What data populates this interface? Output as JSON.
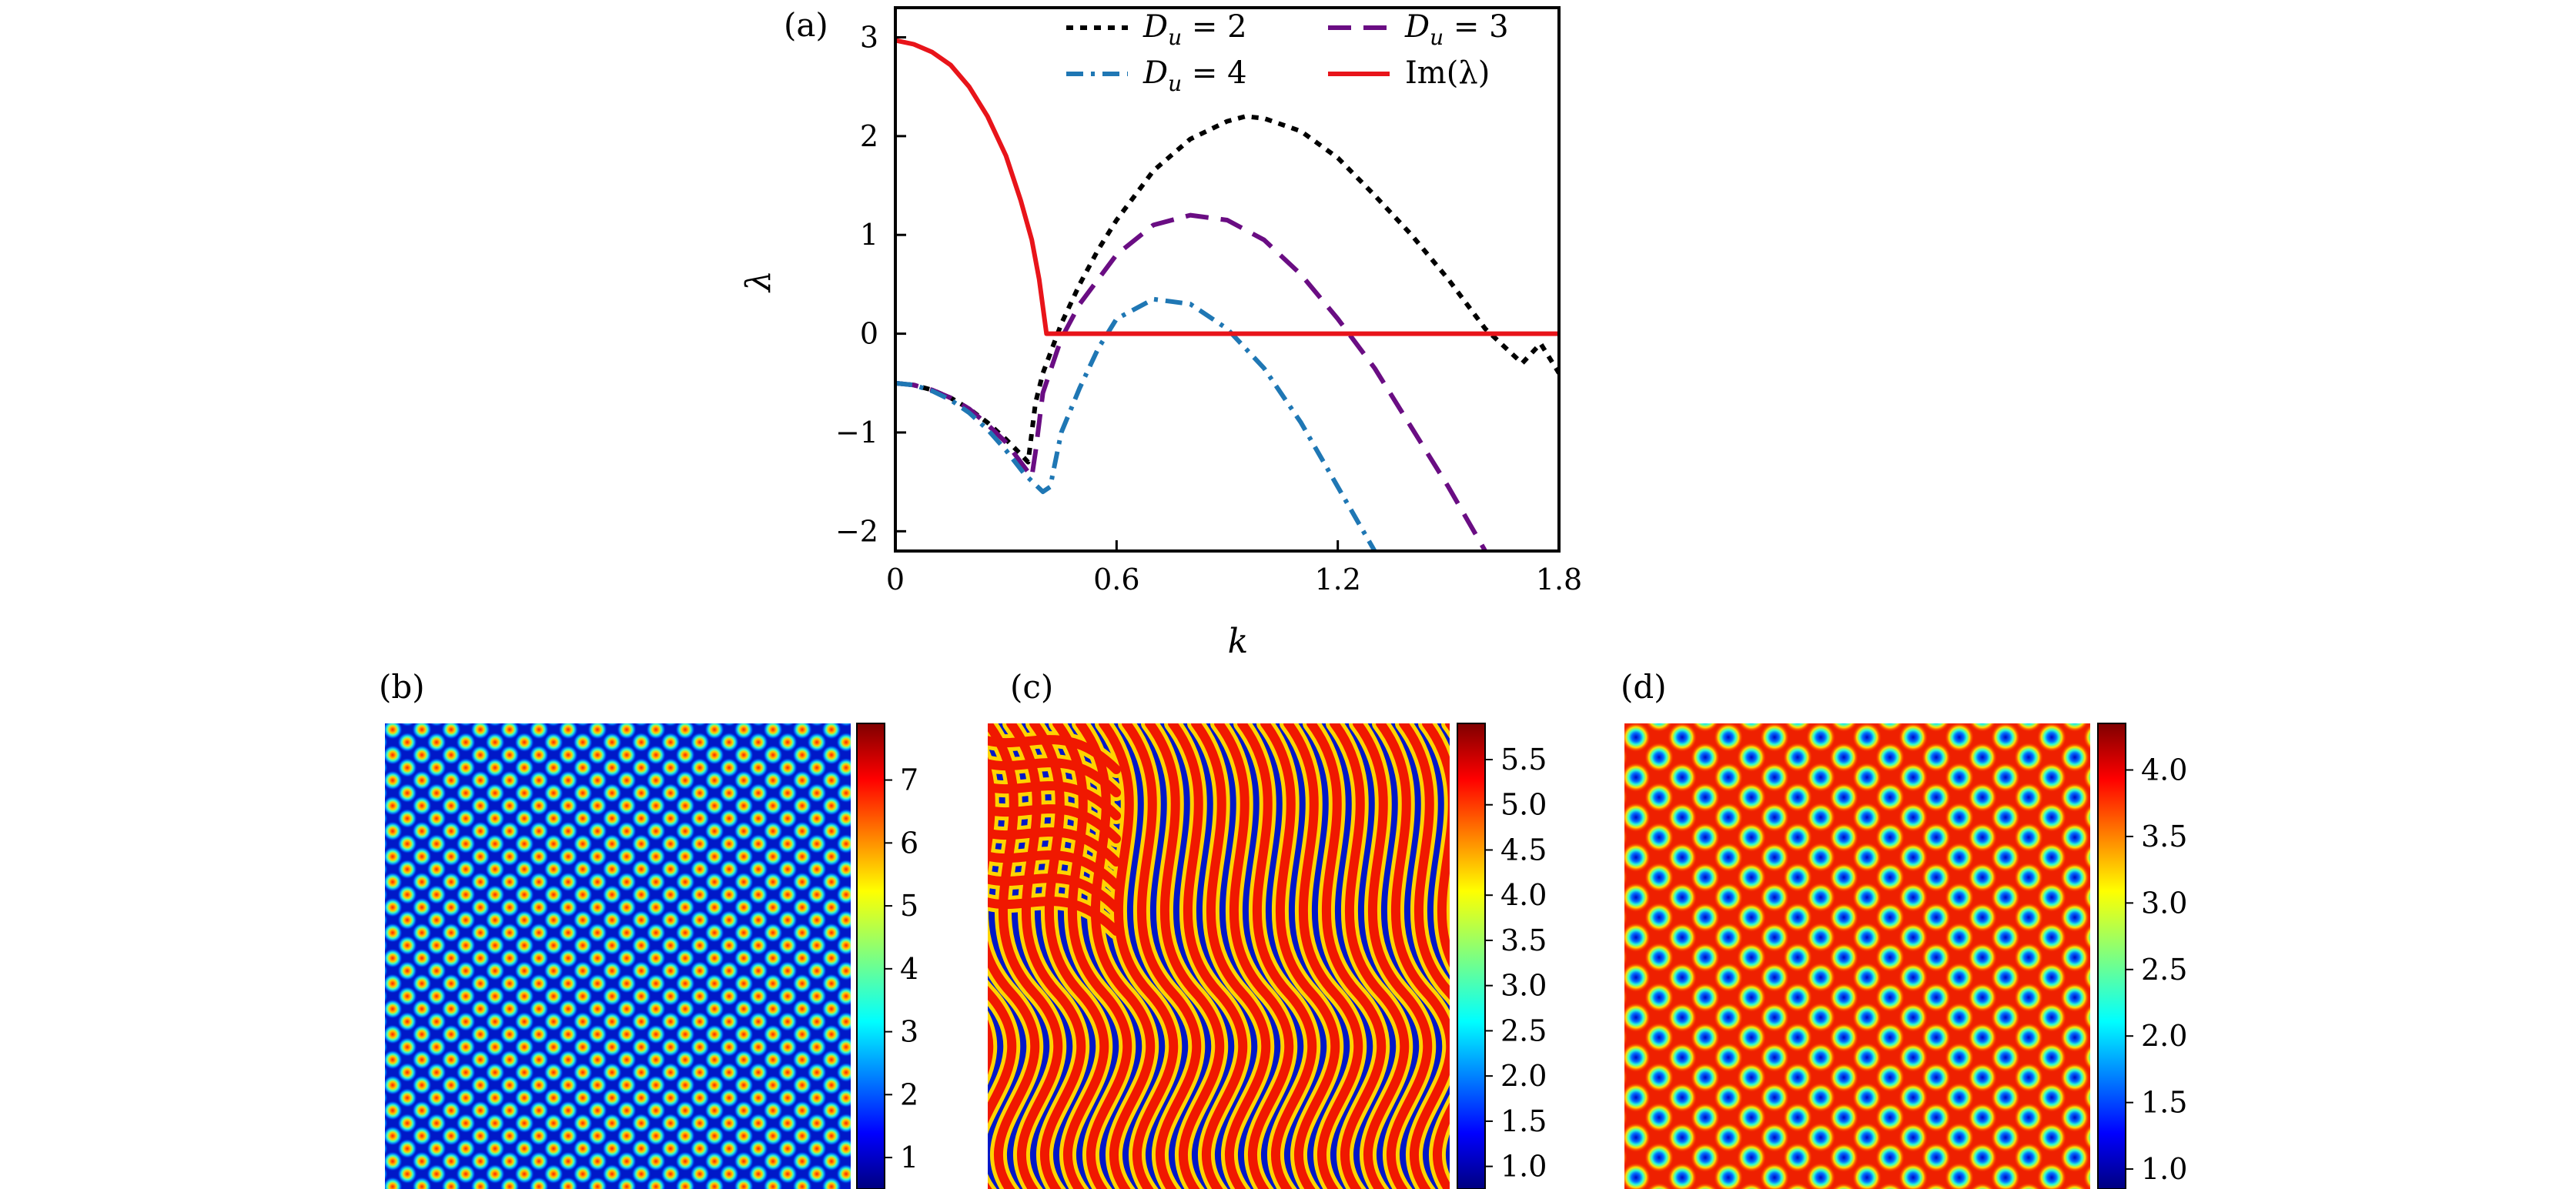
{
  "chart_data": [
    {
      "type": "line",
      "panel": "(a)",
      "xlabel": "k",
      "ylabel": "λ",
      "xlim": [
        0,
        1.8
      ],
      "ylim": [
        -2.2,
        3.3
      ],
      "xticks": [
        0,
        0.6,
        1.2,
        1.8
      ],
      "xtick_labels": [
        "0",
        "0.6",
        "1.2",
        "1.8"
      ],
      "yticks": [
        3,
        2,
        1,
        0,
        -1,
        -2
      ],
      "ytick_labels": [
        "3",
        "2",
        "1",
        "0",
        "−1",
        "−2"
      ],
      "legend_position": "top",
      "series": [
        {
          "name": "D_u = 2",
          "label_main": "D",
          "label_sub": "u",
          "label_rest": " = 2",
          "style": "dotted",
          "color": "#000000",
          "x": [
            0,
            0.05,
            0.1,
            0.15,
            0.2,
            0.25,
            0.3,
            0.34,
            0.36,
            0.37,
            0.38,
            0.4,
            0.45,
            0.5,
            0.55,
            0.6,
            0.7,
            0.8,
            0.9,
            0.95,
            1.0,
            1.1,
            1.2,
            1.3,
            1.4,
            1.5,
            1.6,
            1.7,
            1.75,
            1.8
          ],
          "y": [
            -0.5,
            -0.52,
            -0.57,
            -0.65,
            -0.76,
            -0.9,
            -1.07,
            -1.22,
            -1.3,
            -1.0,
            -0.7,
            -0.4,
            0.1,
            0.5,
            0.85,
            1.15,
            1.65,
            1.97,
            2.15,
            2.2,
            2.18,
            2.05,
            1.78,
            1.4,
            1.0,
            0.55,
            0.05,
            -0.3,
            -0.1,
            -0.4
          ]
        },
        {
          "name": "D_u = 3",
          "label_main": "D",
          "label_sub": "u",
          "label_rest": " = 3",
          "style": "dashed",
          "color": "#6a0d83",
          "x": [
            0,
            0.05,
            0.1,
            0.15,
            0.2,
            0.25,
            0.3,
            0.34,
            0.37,
            0.38,
            0.4,
            0.45,
            0.5,
            0.6,
            0.7,
            0.8,
            0.9,
            1.0,
            1.1,
            1.2,
            1.3,
            1.4,
            1.5,
            1.6
          ],
          "y": [
            -0.5,
            -0.52,
            -0.57,
            -0.65,
            -0.76,
            -0.92,
            -1.1,
            -1.3,
            -1.45,
            -1.2,
            -0.6,
            -0.05,
            0.3,
            0.8,
            1.1,
            1.2,
            1.15,
            0.95,
            0.6,
            0.15,
            -0.35,
            -0.95,
            -1.55,
            -2.2
          ]
        },
        {
          "name": "D_u = 4",
          "label_main": "D",
          "label_sub": "u",
          "label_rest": " = 4",
          "style": "dashdot",
          "color": "#1f77b4",
          "x": [
            0,
            0.05,
            0.1,
            0.15,
            0.2,
            0.25,
            0.3,
            0.35,
            0.4,
            0.42,
            0.45,
            0.5,
            0.55,
            0.6,
            0.7,
            0.8,
            0.9,
            1.0,
            1.1,
            1.2,
            1.3
          ],
          "y": [
            -0.5,
            -0.52,
            -0.58,
            -0.67,
            -0.8,
            -0.97,
            -1.18,
            -1.42,
            -1.6,
            -1.55,
            -1.0,
            -0.55,
            -0.15,
            0.15,
            0.35,
            0.3,
            0.05,
            -0.35,
            -0.9,
            -1.55,
            -2.2
          ]
        },
        {
          "name": "Im(λ)",
          "label_main": "Im(λ)",
          "label_sub": "",
          "label_rest": "",
          "style": "solid",
          "color": "#e8141a",
          "x": [
            0,
            0.05,
            0.1,
            0.15,
            0.2,
            0.25,
            0.3,
            0.34,
            0.37,
            0.39,
            0.41,
            0.42,
            0.6,
            1.0,
            1.4,
            1.8
          ],
          "y": [
            2.97,
            2.93,
            2.85,
            2.72,
            2.5,
            2.2,
            1.8,
            1.35,
            0.95,
            0.55,
            0.0,
            0.0,
            0.0,
            0.0,
            0.0,
            0.0
          ]
        }
      ]
    },
    {
      "type": "heatmap",
      "panel": "(b)",
      "pattern": "spots",
      "colormap": "jet",
      "colorbar_ticks": [
        "1",
        "2",
        "3",
        "4",
        "5",
        "6",
        "7"
      ],
      "colorbar_range": [
        0.5,
        7.9
      ]
    },
    {
      "type": "heatmap",
      "panel": "(c)",
      "pattern": "stripes",
      "colormap": "jet",
      "colorbar_ticks": [
        "1.0",
        "1.5",
        "2.0",
        "2.5",
        "3.0",
        "3.5",
        "4.0",
        "4.5",
        "5.0",
        "5.5"
      ],
      "colorbar_range": [
        0.75,
        5.9
      ]
    },
    {
      "type": "heatmap",
      "panel": "(d)",
      "pattern": "holes",
      "colormap": "jet",
      "colorbar_ticks": [
        "1.0",
        "1.5",
        "2.0",
        "2.5",
        "3.0",
        "3.5",
        "4.0"
      ],
      "colorbar_range": [
        0.85,
        4.35
      ]
    }
  ]
}
